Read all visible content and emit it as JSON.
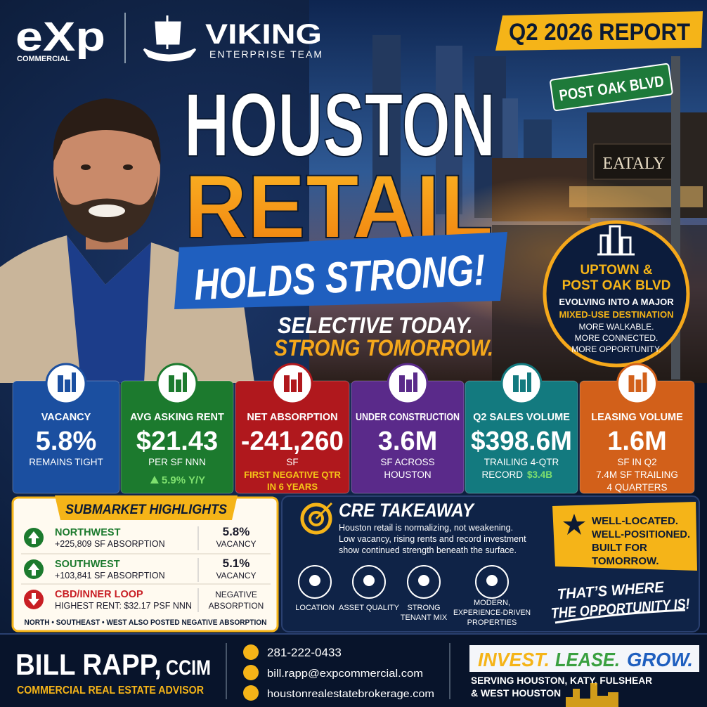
{
  "header": {
    "logo": "eXp",
    "logo_sub": "COMMERCIAL",
    "team": "VIKING",
    "team_sub": "ENTERPRISE TEAM",
    "badge": "Q2 2026 REPORT"
  },
  "scene": {
    "street_sign": "POST OAK BLVD",
    "storefront": "EATALY"
  },
  "headline": {
    "line1": "HOUSTON",
    "line2": "RETAIL",
    "line3": "HOLDS STRONG!",
    "tagline1": "SELECTIVE TODAY.",
    "tagline2": "STRONG TOMORROW."
  },
  "callout": {
    "title": [
      "UPTOWN &",
      "POST OAK BLVD"
    ],
    "lines": [
      "EVOLVING INTO A MAJOR"
    ],
    "highlight": "MIXED-USE DESTINATION",
    "points": [
      "MORE WALKABLE.",
      "MORE CONNECTED.",
      "MORE OPPORTUNITY."
    ]
  },
  "metrics": [
    {
      "label": "VACANCY",
      "value": "5.8%",
      "notes": [
        "REMAINS TIGHT"
      ]
    },
    {
      "label": "AVG ASKING RENT",
      "value": "$21.43",
      "notes": [
        "PER SF NNN"
      ],
      "accent": [
        "5.9% Y/Y"
      ]
    },
    {
      "label": "NET ABSORPTION",
      "value": "-241,260",
      "notes": [
        "SF"
      ],
      "accent": [
        "FIRST NEGATIVE QTR",
        "IN 6 YEARS"
      ]
    },
    {
      "label": "UNDER CONSTRUCTION",
      "value": "3.6M",
      "notes": [
        "SF ACROSS",
        "HOUSTON"
      ]
    },
    {
      "label": "Q2 SALES VOLUME",
      "value": "$398.6M",
      "notes": [
        "TRAILING 4-QTR",
        "RECORD"
      ],
      "accent": [
        "$3.4B"
      ]
    },
    {
      "label": "LEASING VOLUME",
      "value": "1.6M",
      "notes": [
        "SF IN Q2",
        "7.4M SF TRAILING",
        "4 QUARTERS"
      ]
    }
  ],
  "submarkets": {
    "title": "SUBMARKET HIGHLIGHTS",
    "rows": [
      {
        "name": "NORTHWEST",
        "detail": "+225,809 SF ABSORPTION",
        "stat": "5.8%",
        "stat_label": "VACANCY"
      },
      {
        "name": "SOUTHWEST",
        "detail": "+103,841 SF ABSORPTION",
        "stat": "5.1%",
        "stat_label": "VACANCY"
      },
      {
        "name": "CBD/INNER LOOP",
        "detail": "HIGHEST RENT: $32.17 PSF NNN",
        "stat": "NEGATIVE",
        "stat_label": "ABSORPTION"
      }
    ],
    "note": "NORTH • SOUTHEAST • WEST ALSO POSTED NEGATIVE ABSORPTION"
  },
  "takeaway": {
    "title": "CRE TAKEAWAY",
    "body": [
      "Houston retail is normalizing, not weakening.",
      "Low vacancy, rising rents and record investment",
      "show continued strength beneath the surface."
    ],
    "pillars": [
      [
        "LOCATION"
      ],
      [
        "ASSET QUALITY"
      ],
      [
        "STRONG",
        "TENANT MIX"
      ],
      [
        "MODERN,",
        "EXPERIENCE-DRIVEN",
        "PROPERTIES"
      ]
    ],
    "promise": [
      "WELL-LOCATED.",
      "WELL-POSITIONED.",
      "BUILT FOR",
      "TOMORROW."
    ],
    "closing": [
      "THAT’S WHERE",
      "THE OPPORTUNITY IS!"
    ]
  },
  "footer": {
    "name": "BILL RAPP,",
    "credential": "CCIM",
    "role": "COMMERCIAL REAL ESTATE ADVISOR",
    "phone": "281-222-0433",
    "email": "bill.rapp@expcommercial.com",
    "website": "houstonrealestatebrokerage.com",
    "slogan": [
      "INVEST.",
      "LEASE.",
      "GROW."
    ],
    "service_area": [
      "SERVING HOUSTON, KATY, FULSHEAR",
      "& WEST HOUSTON"
    ]
  }
}
